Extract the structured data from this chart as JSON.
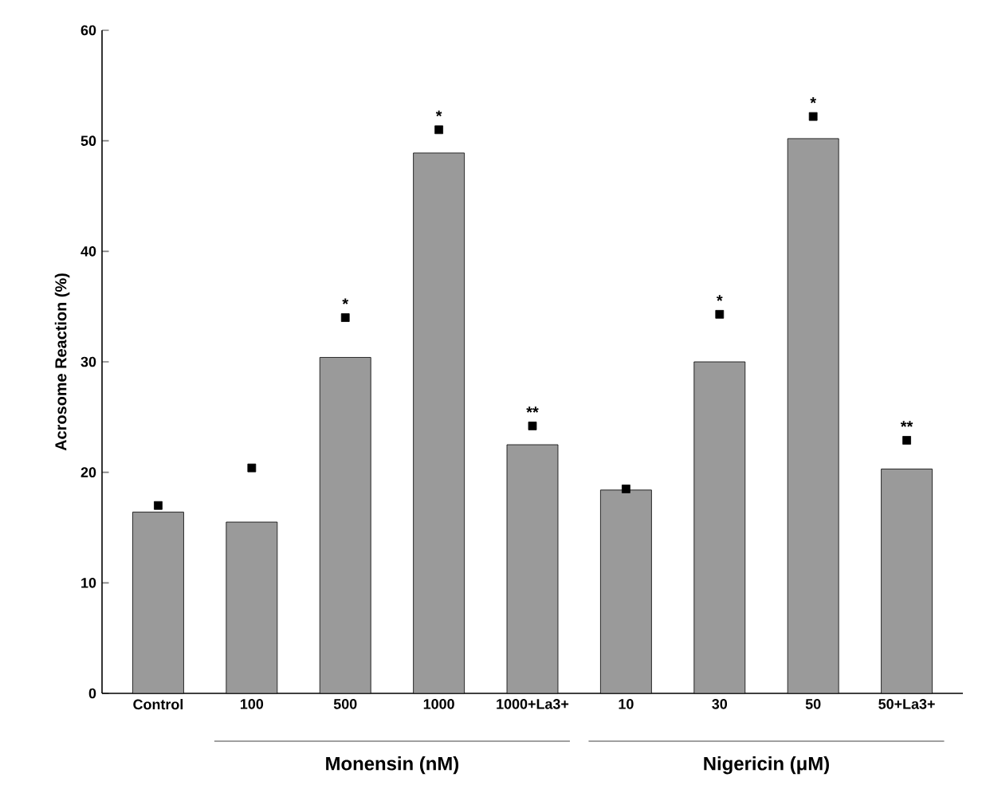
{
  "chart_data": {
    "type": "bar",
    "ylabel": "Acrosome Reaction (%)",
    "categories": [
      "Control",
      "100",
      "500",
      "1000",
      "1000+La3+",
      "10",
      "30",
      "50",
      "50+La3+"
    ],
    "series": [
      {
        "color": "#9a9a9a",
        "values": [
          16.4,
          15.5,
          30.4,
          48.9,
          22.5,
          18.4,
          30.0,
          50.2,
          20.3
        ]
      },
      {
        "type": "scatter",
        "color": "#000000",
        "values": [
          17.0,
          20.4,
          34.0,
          51.0,
          24.2,
          18.5,
          34.3,
          52.2,
          22.9
        ],
        "value_labels": [
          null,
          null,
          "*",
          "*",
          "**",
          null,
          "*",
          "*",
          "**"
        ]
      }
    ],
    "marker": "square",
    "ylim": [
      0,
      60
    ],
    "yticks": [
      0,
      10,
      20,
      30,
      40,
      50,
      60
    ],
    "grid": false,
    "annotations": [
      "Monensin (nM)",
      "Nigericin (μM)"
    ]
  }
}
